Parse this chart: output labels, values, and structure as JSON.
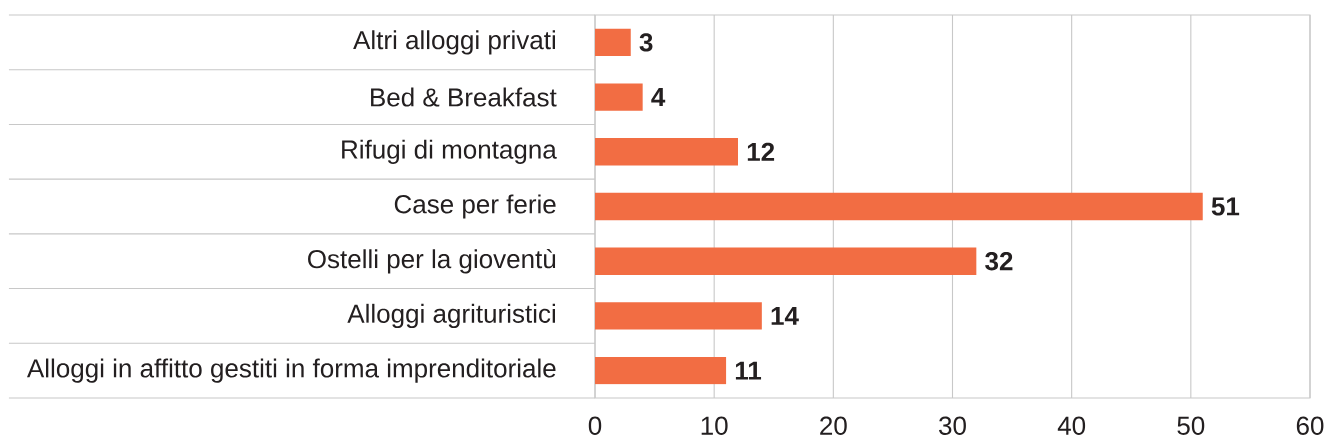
{
  "chart_data": {
    "type": "bar",
    "orientation": "horizontal",
    "categories": [
      "Altri alloggi privati",
      "Bed & Breakfast",
      "Rifugi di montagna",
      "Case per ferie",
      "Ostelli per la gioventù",
      "Alloggi agrituristici",
      "Alloggi in affitto gestiti in forma imprenditoriale"
    ],
    "values": [
      3,
      4,
      12,
      51,
      32,
      14,
      11
    ],
    "color": "#f26d43",
    "xlim": [
      0,
      60
    ],
    "xticks": [
      0,
      10,
      20,
      30,
      40,
      50,
      60
    ],
    "grid": "x",
    "data_labels": true
  }
}
